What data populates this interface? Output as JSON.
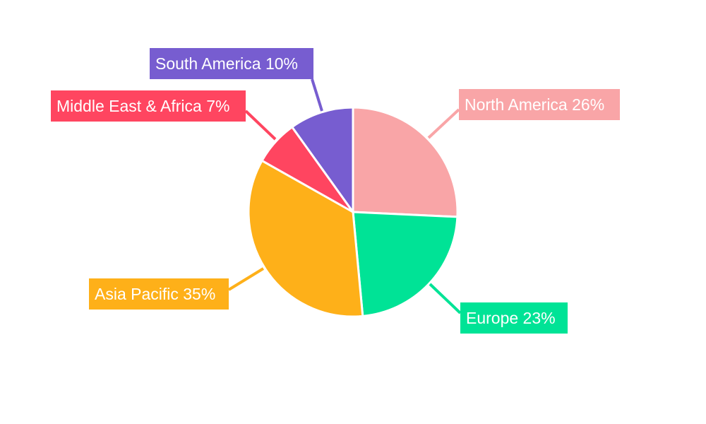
{
  "chart_data": {
    "type": "pie",
    "title": "",
    "start_angle": "top",
    "direction": "clockwise",
    "slices": [
      {
        "label": "North America",
        "value": 26,
        "display": "North America 26%",
        "color": "#F9A5A7"
      },
      {
        "label": "Europe",
        "value": 23,
        "display": "Europe 23%",
        "color": "#00E396"
      },
      {
        "label": "Asia Pacific",
        "value": 35,
        "display": "Asia Pacific 35%",
        "color": "#FEB019"
      },
      {
        "label": "Middle East & Africa",
        "value": 7,
        "display": "Middle East & Africa 7%",
        "color": "#FF4560"
      },
      {
        "label": "South America",
        "value": 10,
        "display": "South America 10%",
        "color": "#775DD0"
      }
    ]
  }
}
